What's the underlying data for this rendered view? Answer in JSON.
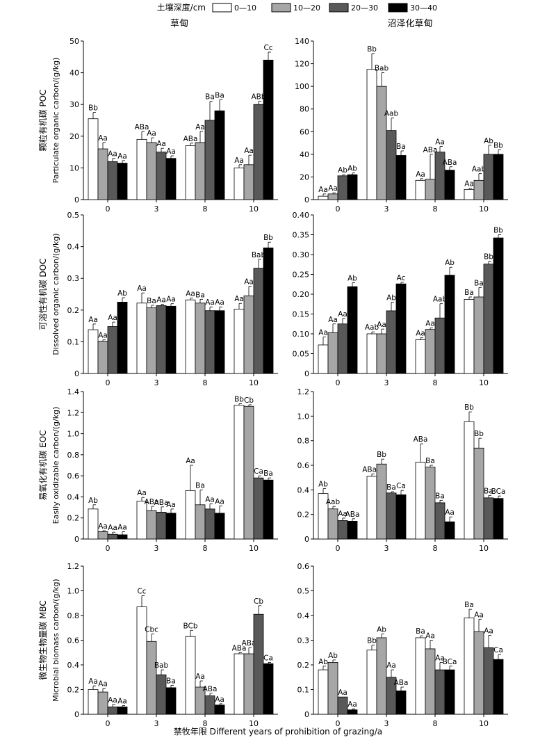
{
  "legend": {
    "title": "土壤深度/cm",
    "items": [
      {
        "label": "0—10",
        "color": "#ffffff"
      },
      {
        "label": "10—20",
        "color": "#a6a6a6"
      },
      {
        "label": "20—30",
        "color": "#595959"
      },
      {
        "label": "30—40",
        "color": "#000000"
      }
    ]
  },
  "column_titles": [
    "草甸",
    "沼泽化草甸"
  ],
  "x_axis_label": "禁牧年限 Different years of prohibition of grazing/a",
  "chart_data": [
    {
      "type": "bar",
      "panel": "草甸 POC",
      "ylabel_cn": "颗粒有机碳 POC",
      "ylabel_en": "Particulate organic carbon/(g/kg)",
      "categories": [
        "0",
        "3",
        "8",
        "10"
      ],
      "ylim": [
        0,
        50
      ],
      "yticks": [
        "0",
        "10",
        "20",
        "30",
        "40",
        "50"
      ],
      "series": [
        {
          "name": "0—10",
          "values": [
            25.5,
            19,
            17,
            10
          ],
          "errors": [
            2,
            2.5,
            0.8,
            1
          ],
          "labels": [
            "Bb",
            "ABa",
            "ABa",
            "Aa"
          ]
        },
        {
          "name": "10—20",
          "values": [
            16,
            18,
            18,
            11
          ],
          "errors": [
            2,
            1.5,
            3.5,
            3
          ],
          "labels": [
            "Aa",
            "Aa",
            "Aa",
            "Aa"
          ]
        },
        {
          "name": "20—30",
          "values": [
            12,
            15,
            25,
            30
          ],
          "errors": [
            1,
            1.2,
            6,
            1
          ],
          "labels": [
            "Aa",
            "Aa",
            "Ba",
            "ABb"
          ]
        },
        {
          "name": "30—40",
          "values": [
            11.5,
            13,
            28,
            44
          ],
          "errors": [
            0.8,
            0.8,
            3.5,
            2.5
          ],
          "labels": [
            "Aa",
            "Aa",
            "Ba",
            "Cc"
          ]
        }
      ]
    },
    {
      "type": "bar",
      "panel": "沼泽化草甸 POC",
      "categories": [
        "0",
        "3",
        "8",
        "10"
      ],
      "ylim": [
        0,
        140
      ],
      "yticks": [
        "0",
        "20",
        "40",
        "60",
        "80",
        "100",
        "120",
        "140"
      ],
      "series": [
        {
          "name": "0—10",
          "values": [
            3,
            115,
            17,
            9
          ],
          "errors": [
            2,
            14,
            1.5,
            1
          ],
          "labels": [
            "Aa",
            "Bb",
            "Aa",
            "Aa"
          ]
        },
        {
          "name": "10—20",
          "values": [
            5,
            100,
            18,
            17
          ],
          "errors": [
            1,
            12,
            22,
            6
          ],
          "labels": [
            "Aa",
            "Bab",
            "ABa",
            "Aab"
          ]
        },
        {
          "name": "20—30",
          "values": [
            21,
            61,
            42,
            40
          ],
          "errors": [
            1,
            11,
            5,
            8
          ],
          "labels": [
            "Ab",
            "Aab",
            "Aa",
            "Ab"
          ]
        },
        {
          "name": "30—40",
          "values": [
            22,
            39,
            26,
            40
          ],
          "errors": [
            1.5,
            4,
            3,
            4
          ],
          "labels": [
            "Ab",
            "Ba",
            "ABa",
            "Bb"
          ]
        }
      ]
    },
    {
      "type": "bar",
      "panel": "草甸 DOC",
      "ylabel_cn": "可溶性有机碳 DOC",
      "ylabel_en": "Dissolved organic carbon/(g/kg)",
      "categories": [
        "0",
        "3",
        "8",
        "10"
      ],
      "ylim": [
        0,
        0.5
      ],
      "yticks": [
        "0",
        "0.1",
        "0.2",
        "0.3",
        "0.4",
        "0.5"
      ],
      "series": [
        {
          "name": "0—10",
          "values": [
            0.138,
            0.222,
            0.232,
            0.203
          ],
          "errors": [
            0.018,
            0.032,
            0.006,
            0.018
          ],
          "labels": [
            "Aa",
            "Aa",
            "Aa",
            "Aa"
          ]
        },
        {
          "name": "10—20",
          "values": [
            0.102,
            0.207,
            0.222,
            0.245
          ],
          "errors": [
            0.004,
            0.008,
            0.012,
            0.03
          ],
          "labels": [
            "Aa",
            "Ba",
            "Ba",
            "Aa"
          ]
        },
        {
          "name": "20—30",
          "values": [
            0.148,
            0.214,
            0.198,
            0.332
          ],
          "errors": [
            0.014,
            0.004,
            0.012,
            0.028
          ],
          "labels": [
            "Aa",
            "Aa",
            "Aa",
            "Bab"
          ]
        },
        {
          "name": "30—40",
          "values": [
            0.225,
            0.212,
            0.198,
            0.396
          ],
          "errors": [
            0.014,
            0.008,
            0.012,
            0.018
          ],
          "labels": [
            "Ab",
            "Aa",
            "Aa",
            "Bb"
          ]
        }
      ]
    },
    {
      "type": "bar",
      "panel": "沼泽化草甸 DOC",
      "categories": [
        "0",
        "3",
        "8",
        "10"
      ],
      "ylim": [
        0,
        0.4
      ],
      "yticks": [
        "0",
        "0.05",
        "0.10",
        "0.15",
        "0.20",
        "0.25",
        "0.30",
        "0.35",
        "0.40"
      ],
      "series": [
        {
          "name": "0—10",
          "values": [
            0.072,
            0.1,
            0.085,
            0.187
          ],
          "errors": [
            0.02,
            0.005,
            0.005,
            0.006
          ],
          "labels": [
            "Aa",
            "Aab",
            "Aa",
            "Ba"
          ]
        },
        {
          "name": "10—20",
          "values": [
            0.103,
            0.1,
            0.111,
            0.193
          ],
          "errors": [
            0.022,
            0.012,
            0.004,
            0.024
          ],
          "labels": [
            "Aa",
            "Aa",
            "Aa",
            "Ba"
          ]
        },
        {
          "name": "20—30",
          "values": [
            0.125,
            0.158,
            0.14,
            0.276
          ],
          "errors": [
            0.014,
            0.022,
            0.036,
            0.007
          ],
          "labels": [
            "Aa",
            "Ab",
            "Aab",
            "Bb"
          ]
        },
        {
          "name": "30—40",
          "values": [
            0.219,
            0.226,
            0.248,
            0.342
          ],
          "errors": [
            0.01,
            0.004,
            0.02,
            0.008
          ],
          "labels": [
            "Ab",
            "Ac",
            "Ab",
            "Bb"
          ]
        }
      ]
    },
    {
      "type": "bar",
      "panel": "草甸 EOC",
      "ylabel_cn": "易氧化有机碳 EOC",
      "ylabel_en": "Easily oxidizable carbon/(g/kg)",
      "categories": [
        "0",
        "3",
        "8",
        "10"
      ],
      "ylim": [
        0,
        1.4
      ],
      "yticks": [
        "0",
        "0.2",
        "0.4",
        "0.6",
        "0.8",
        "1.0",
        "1.2",
        "1.4"
      ],
      "series": [
        {
          "name": "0—10",
          "values": [
            0.285,
            0.36,
            0.46,
            1.27
          ],
          "errors": [
            0.04,
            0.035,
            0.24,
            0.015
          ],
          "labels": [
            "Ab",
            "Aa",
            "Aa",
            "Bb"
          ]
        },
        {
          "name": "10—20",
          "values": [
            0.07,
            0.27,
            0.325,
            1.26
          ],
          "errors": [
            0.01,
            0.04,
            0.14,
            0.015
          ],
          "labels": [
            "Aa",
            "ABa",
            "Ba",
            "Cb"
          ]
        },
        {
          "name": "20—30",
          "values": [
            0.045,
            0.255,
            0.285,
            0.58
          ],
          "errors": [
            0.02,
            0.05,
            0.05,
            0.02
          ],
          "labels": [
            "Aa",
            "ABa",
            "Aa",
            "Ca"
          ]
        },
        {
          "name": "30—40",
          "values": [
            0.04,
            0.245,
            0.245,
            0.56
          ],
          "errors": [
            0.03,
            0.04,
            0.07,
            0.02
          ],
          "labels": [
            "Aa",
            "Aa",
            "Aa",
            "Ba"
          ]
        }
      ]
    },
    {
      "type": "bar",
      "panel": "沼泽化草甸 EOC",
      "categories": [
        "0",
        "3",
        "8",
        "10"
      ],
      "ylim": [
        0,
        1.2
      ],
      "yticks": [
        "0",
        "0.2",
        "0.4",
        "0.6",
        "0.8",
        "1.0",
        "1.2"
      ],
      "series": [
        {
          "name": "0—10",
          "values": [
            0.37,
            0.51,
            0.625,
            0.955
          ],
          "errors": [
            0.04,
            0.02,
            0.15,
            0.08
          ],
          "labels": [
            "Ab",
            "ABab",
            "ABa",
            "Bb"
          ]
        },
        {
          "name": "10—20",
          "values": [
            0.245,
            0.61,
            0.585,
            0.74
          ],
          "errors": [
            0.02,
            0.04,
            0.015,
            0.08
          ],
          "labels": [
            "Aab",
            "Bb",
            "Ba",
            "Bb"
          ]
        },
        {
          "name": "20—30",
          "values": [
            0.15,
            0.375,
            0.295,
            0.335
          ],
          "errors": [
            0.02,
            0.01,
            0.02,
            0.02
          ],
          "labels": [
            "Aa",
            "Ba",
            "Ba",
            "Ba"
          ]
        },
        {
          "name": "30—40",
          "values": [
            0.145,
            0.36,
            0.14,
            0.33
          ],
          "errors": [
            0.02,
            0.035,
            0.04,
            0.02
          ],
          "labels": [
            "ABa",
            "Ca",
            "Aa",
            "BCa"
          ]
        }
      ]
    },
    {
      "type": "bar",
      "panel": "草甸 MBC",
      "ylabel_cn": "微生物生物量碳 MBC",
      "ylabel_en": "Microbial biomass carbon/(g/kg)",
      "categories": [
        "0",
        "3",
        "8",
        "10"
      ],
      "ylim": [
        0,
        1.2
      ],
      "yticks": [
        "0",
        "0.2",
        "0.4",
        "0.6",
        "0.8",
        "1.0",
        "1.2"
      ],
      "series": [
        {
          "name": "0—10",
          "values": [
            0.2,
            0.87,
            0.63,
            0.49
          ],
          "errors": [
            0.03,
            0.09,
            0.05,
            0.01
          ],
          "labels": [
            "Aa",
            "Cc",
            "BCb",
            "ABa"
          ]
        },
        {
          "name": "10—20",
          "values": [
            0.18,
            0.59,
            0.22,
            0.49
          ],
          "errors": [
            0.03,
            0.06,
            0.05,
            0.05
          ],
          "labels": [
            "Aa",
            "Cbc",
            "Aa",
            "ABa"
          ]
        },
        {
          "name": "20—30",
          "values": [
            0.06,
            0.32,
            0.15,
            0.81
          ],
          "errors": [
            0.02,
            0.04,
            0.02,
            0.07
          ],
          "labels": [
            "Aa",
            "Bab",
            "ABa",
            "Cb"
          ]
        },
        {
          "name": "30—40",
          "values": [
            0.06,
            0.215,
            0.075,
            0.41
          ],
          "errors": [
            0.01,
            0.02,
            0.01,
            0.01
          ],
          "labels": [
            "Aa",
            "Ba",
            "Aa",
            "Ca"
          ]
        }
      ]
    },
    {
      "type": "bar",
      "panel": "沼泽化草甸 MBC",
      "categories": [
        "0",
        "3",
        "8",
        "10"
      ],
      "ylim": [
        0,
        0.6
      ],
      "yticks": [
        "0",
        "0.1",
        "0.2",
        "0.3",
        "0.4",
        "0.5",
        "0.6"
      ],
      "series": [
        {
          "name": "0—10",
          "values": [
            0.18,
            0.26,
            0.31,
            0.39
          ],
          "errors": [
            0.015,
            0.02,
            0.008,
            0.035
          ],
          "labels": [
            "Ab",
            "Bb",
            "Ba",
            "Ba"
          ]
        },
        {
          "name": "10—20",
          "values": [
            0.21,
            0.31,
            0.265,
            0.335
          ],
          "errors": [
            0.01,
            0.015,
            0.035,
            0.05
          ],
          "labels": [
            "Ab",
            "Ab",
            "Aa",
            "Aa"
          ]
        },
        {
          "name": "20—30",
          "values": [
            0.07,
            0.15,
            0.18,
            0.27
          ],
          "errors": [
            0,
            0.03,
            0.03,
            0.05
          ],
          "labels": [
            "Aa",
            "Aa",
            "Aa",
            "Aa"
          ]
        },
        {
          "name": "30—40",
          "values": [
            0.018,
            0.095,
            0.18,
            0.222
          ],
          "errors": [
            0.004,
            0.015,
            0.015,
            0.02
          ],
          "labels": [
            "Aa",
            "ABa",
            "BCa",
            "Ca"
          ]
        }
      ]
    }
  ]
}
